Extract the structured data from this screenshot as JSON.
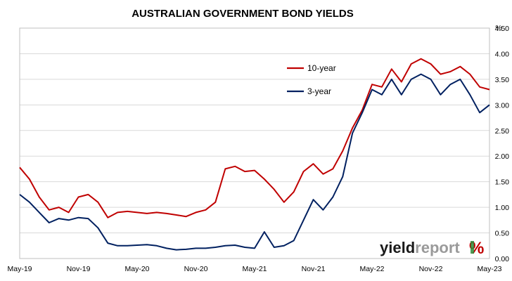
{
  "chart_data": {
    "type": "line",
    "title": "AUSTRALIAN GOVERNMENT BOND YIELDS",
    "unit_label": "%",
    "xlabel": "",
    "ylabel": "",
    "x_ticks": [
      "May-19",
      "Nov-19",
      "May-20",
      "Nov-20",
      "May-21",
      "Nov-21",
      "May-22",
      "Nov-22",
      "May-23"
    ],
    "y_ticks": [
      "0.00",
      "0.50",
      "1.00",
      "1.50",
      "2.00",
      "2.50",
      "3.00",
      "3.50",
      "4.00",
      "4.50"
    ],
    "ylim": [
      0,
      4.5
    ],
    "grid": true,
    "legend_position": "upper-right inside plot",
    "x_months_since_may19": [
      0,
      1,
      2,
      3,
      4,
      5,
      6,
      7,
      8,
      9,
      10,
      11,
      12,
      13,
      14,
      15,
      16,
      17,
      18,
      19,
      20,
      21,
      22,
      23,
      24,
      25,
      26,
      27,
      28,
      29,
      30,
      31,
      32,
      33,
      34,
      35,
      36,
      37,
      38,
      39,
      40,
      41,
      42,
      43,
      44,
      45,
      46,
      47,
      48
    ],
    "series": [
      {
        "name": "10-year",
        "color": "#c00000",
        "values": [
          1.78,
          1.55,
          1.2,
          0.95,
          1.0,
          0.9,
          1.2,
          1.25,
          1.1,
          0.8,
          0.9,
          0.92,
          0.9,
          0.88,
          0.9,
          0.88,
          0.85,
          0.82,
          0.9,
          0.95,
          1.1,
          1.75,
          1.8,
          1.7,
          1.72,
          1.55,
          1.35,
          1.1,
          1.3,
          1.7,
          1.85,
          1.65,
          1.75,
          2.1,
          2.55,
          2.9,
          3.4,
          3.35,
          3.7,
          3.45,
          3.8,
          3.9,
          3.8,
          3.6,
          3.65,
          3.75,
          3.6,
          3.35,
          3.3
        ]
      },
      {
        "name": "3-year",
        "color": "#002060",
        "values": [
          1.25,
          1.1,
          0.9,
          0.7,
          0.78,
          0.75,
          0.8,
          0.78,
          0.6,
          0.3,
          0.25,
          0.25,
          0.26,
          0.27,
          0.25,
          0.2,
          0.17,
          0.18,
          0.2,
          0.2,
          0.22,
          0.25,
          0.26,
          0.22,
          0.2,
          0.52,
          0.22,
          0.25,
          0.35,
          0.75,
          1.15,
          0.95,
          1.2,
          1.6,
          2.45,
          2.85,
          3.3,
          3.2,
          3.5,
          3.2,
          3.5,
          3.6,
          3.5,
          3.2,
          3.4,
          3.5,
          3.2,
          2.85,
          3.0
        ]
      }
    ]
  },
  "brand": {
    "part1": "yield",
    "part2": "report",
    "symbol": "%"
  }
}
